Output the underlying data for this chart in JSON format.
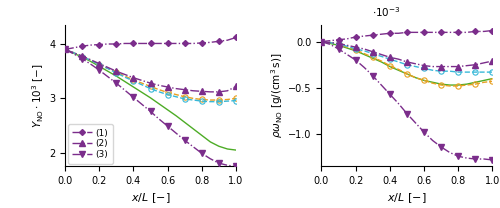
{
  "x": [
    0.0,
    0.05,
    0.1,
    0.15,
    0.2,
    0.25,
    0.3,
    0.35,
    0.4,
    0.45,
    0.5,
    0.55,
    0.6,
    0.65,
    0.7,
    0.75,
    0.8,
    0.85,
    0.9,
    0.95,
    1.0
  ],
  "left_green": [
    3.9,
    3.83,
    3.76,
    3.68,
    3.59,
    3.5,
    3.41,
    3.31,
    3.21,
    3.11,
    3.01,
    2.9,
    2.79,
    2.68,
    2.56,
    2.44,
    2.32,
    2.2,
    2.12,
    2.07,
    2.05
  ],
  "left_orange": [
    3.9,
    3.84,
    3.77,
    3.7,
    3.62,
    3.55,
    3.48,
    3.41,
    3.34,
    3.28,
    3.22,
    3.16,
    3.11,
    3.07,
    3.03,
    3.0,
    2.98,
    2.97,
    2.97,
    2.98,
    3.0
  ],
  "left_cyan": [
    3.9,
    3.84,
    3.77,
    3.7,
    3.62,
    3.55,
    3.47,
    3.39,
    3.32,
    3.25,
    3.18,
    3.12,
    3.07,
    3.03,
    2.99,
    2.97,
    2.95,
    2.94,
    2.94,
    2.95,
    2.96
  ],
  "left_p1": [
    3.9,
    3.93,
    3.96,
    3.98,
    3.99,
    4.0,
    4.0,
    4.01,
    4.01,
    4.01,
    4.01,
    4.01,
    4.01,
    4.01,
    4.01,
    4.01,
    4.02,
    4.03,
    4.05,
    4.07,
    4.12
  ],
  "left_p2": [
    3.9,
    3.84,
    3.78,
    3.71,
    3.64,
    3.57,
    3.5,
    3.44,
    3.38,
    3.33,
    3.28,
    3.24,
    3.21,
    3.18,
    3.16,
    3.14,
    3.13,
    3.12,
    3.12,
    3.14,
    3.22
  ],
  "left_p3": [
    3.9,
    3.82,
    3.73,
    3.63,
    3.52,
    3.4,
    3.28,
    3.15,
    3.02,
    2.89,
    2.76,
    2.62,
    2.49,
    2.36,
    2.23,
    2.11,
    1.99,
    1.89,
    1.81,
    1.77,
    1.75
  ],
  "right_green": [
    0.0,
    -0.02,
    -0.04,
    -0.07,
    -0.1,
    -0.14,
    -0.18,
    -0.22,
    -0.27,
    -0.31,
    -0.35,
    -0.39,
    -0.42,
    -0.44,
    -0.46,
    -0.47,
    -0.47,
    -0.46,
    -0.44,
    -0.42,
    -0.4
  ],
  "right_orange": [
    0.0,
    -0.01,
    -0.03,
    -0.06,
    -0.09,
    -0.13,
    -0.17,
    -0.21,
    -0.26,
    -0.3,
    -0.35,
    -0.39,
    -0.42,
    -0.45,
    -0.47,
    -0.48,
    -0.48,
    -0.47,
    -0.46,
    -0.44,
    -0.43
  ],
  "right_cyan": [
    0.0,
    -0.01,
    -0.03,
    -0.05,
    -0.08,
    -0.1,
    -0.13,
    -0.16,
    -0.19,
    -0.22,
    -0.25,
    -0.27,
    -0.29,
    -0.31,
    -0.32,
    -0.32,
    -0.33,
    -0.33,
    -0.33,
    -0.33,
    -0.33
  ],
  "right_p1": [
    0.0,
    0.01,
    0.02,
    0.03,
    0.05,
    0.06,
    0.07,
    0.08,
    0.09,
    0.09,
    0.1,
    0.1,
    0.1,
    0.1,
    0.1,
    0.1,
    0.1,
    0.1,
    0.11,
    0.11,
    0.12
  ],
  "right_p2": [
    0.0,
    -0.01,
    -0.02,
    -0.04,
    -0.06,
    -0.08,
    -0.11,
    -0.14,
    -0.17,
    -0.19,
    -0.22,
    -0.24,
    -0.26,
    -0.27,
    -0.27,
    -0.27,
    -0.27,
    -0.26,
    -0.25,
    -0.23,
    -0.21
  ],
  "right_p3": [
    0.0,
    -0.03,
    -0.08,
    -0.14,
    -0.2,
    -0.28,
    -0.37,
    -0.47,
    -0.57,
    -0.67,
    -0.78,
    -0.88,
    -0.98,
    -1.07,
    -1.14,
    -1.2,
    -1.24,
    -1.26,
    -1.27,
    -1.27,
    -1.28
  ],
  "color_green": "#4dac26",
  "color_orange": "#e8a020",
  "color_cyan": "#38b8d8",
  "color_purple": "#7b2d8b",
  "left_ylabel": "$Y_{\\mathrm{NO}} \\cdot 10^3$ $[-]$",
  "right_ylabel": "$\\rho\\omega_{\\mathrm{NO}}$ $[\\mathrm{g/(cm^3\\,s)}]$",
  "xlabel": "$x/L$ $[-]$",
  "left_ylim": [
    1.75,
    4.35
  ],
  "right_ylim": [
    -1.35,
    0.18
  ],
  "left_yticks": [
    2.0,
    3.0,
    4.0
  ],
  "right_yticks": [
    0.0,
    -0.5,
    -1.0
  ],
  "xlim": [
    0.0,
    1.0
  ],
  "xticks": [
    0.0,
    0.2,
    0.4,
    0.6,
    0.8,
    1.0
  ],
  "legend_labels": [
    "(1)",
    "(2)",
    "(3)"
  ]
}
